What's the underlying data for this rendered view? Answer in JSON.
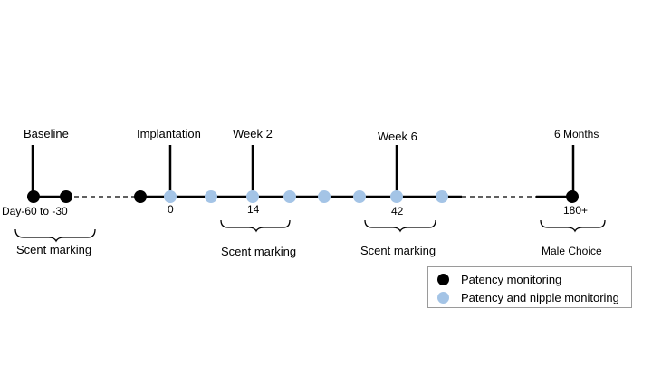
{
  "milestones": {
    "baseline": "Baseline",
    "implantation": "Implantation",
    "week2": "Week 2",
    "week6": "Week 6",
    "six_months": "6 Months"
  },
  "ticks": {
    "day_range": "Day-60 to -30",
    "zero": "0",
    "fourteen": "14",
    "forty_two": "42",
    "one_eighty_plus": "180+"
  },
  "brackets": {
    "scent_1": "Scent marking",
    "scent_2": "Scent marking",
    "scent_3": "Scent marking",
    "male_choice": "Male Choice"
  },
  "legend": {
    "items": [
      {
        "label": "Patency monitoring",
        "color": "#000000"
      },
      {
        "label": "Patency and nipple monitoring",
        "color": "#a4c4e6"
      }
    ]
  },
  "colors": {
    "timeline": "#000000",
    "patency_dot": "#000000",
    "nipple_dot": "#a4c4e6"
  }
}
